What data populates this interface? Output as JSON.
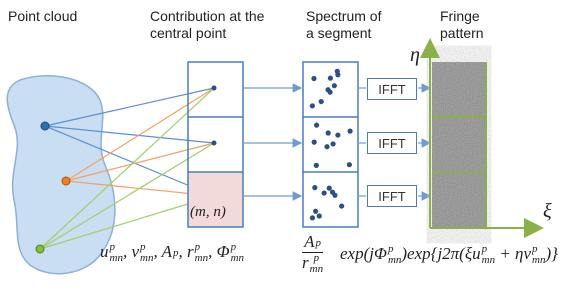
{
  "headings": [
    {
      "lines": [
        "Point cloud"
      ]
    },
    {
      "lines": [
        "Contribution at the",
        "central point"
      ]
    },
    {
      "lines": [
        "Spectrum of",
        "a segment"
      ]
    },
    {
      "lines": [
        "Fringe",
        "pattern"
      ]
    }
  ],
  "axis_labels": {
    "eta": "η",
    "xi": "ξ"
  },
  "ifft": [
    "IFFT",
    "IFFT",
    "IFFT"
  ],
  "cell_label": "(m, n)",
  "formula_left": [
    {
      "t": "u",
      "sup": "p",
      "sub": "mn"
    },
    {
      "t": ", v",
      "sup": "p",
      "sub": "mn"
    },
    {
      "t": ", A",
      "sub": "p"
    },
    {
      "t": ", r",
      "sup": "p",
      "sub": "mn"
    },
    {
      "t": ", Φ",
      "sup": "p",
      "sub": "mn"
    }
  ],
  "formula_right": {
    "numerator": [
      {
        "t": "A",
        "sub": "p"
      }
    ],
    "denominator": [
      {
        "t": "r",
        "sup": "p",
        "sub": "mn"
      }
    ],
    "rest": [
      {
        "t": "exp(j"
      },
      {
        "t": "Φ",
        "sup": "p",
        "sub": "mn"
      },
      {
        "t": ")exp{j2π(ξu",
        "sup": "p",
        "sub": "mn"
      },
      {
        "t": " + ηv",
        "sup": "p",
        "sub": "mn"
      },
      {
        "t": ")}"
      }
    ]
  }
}
